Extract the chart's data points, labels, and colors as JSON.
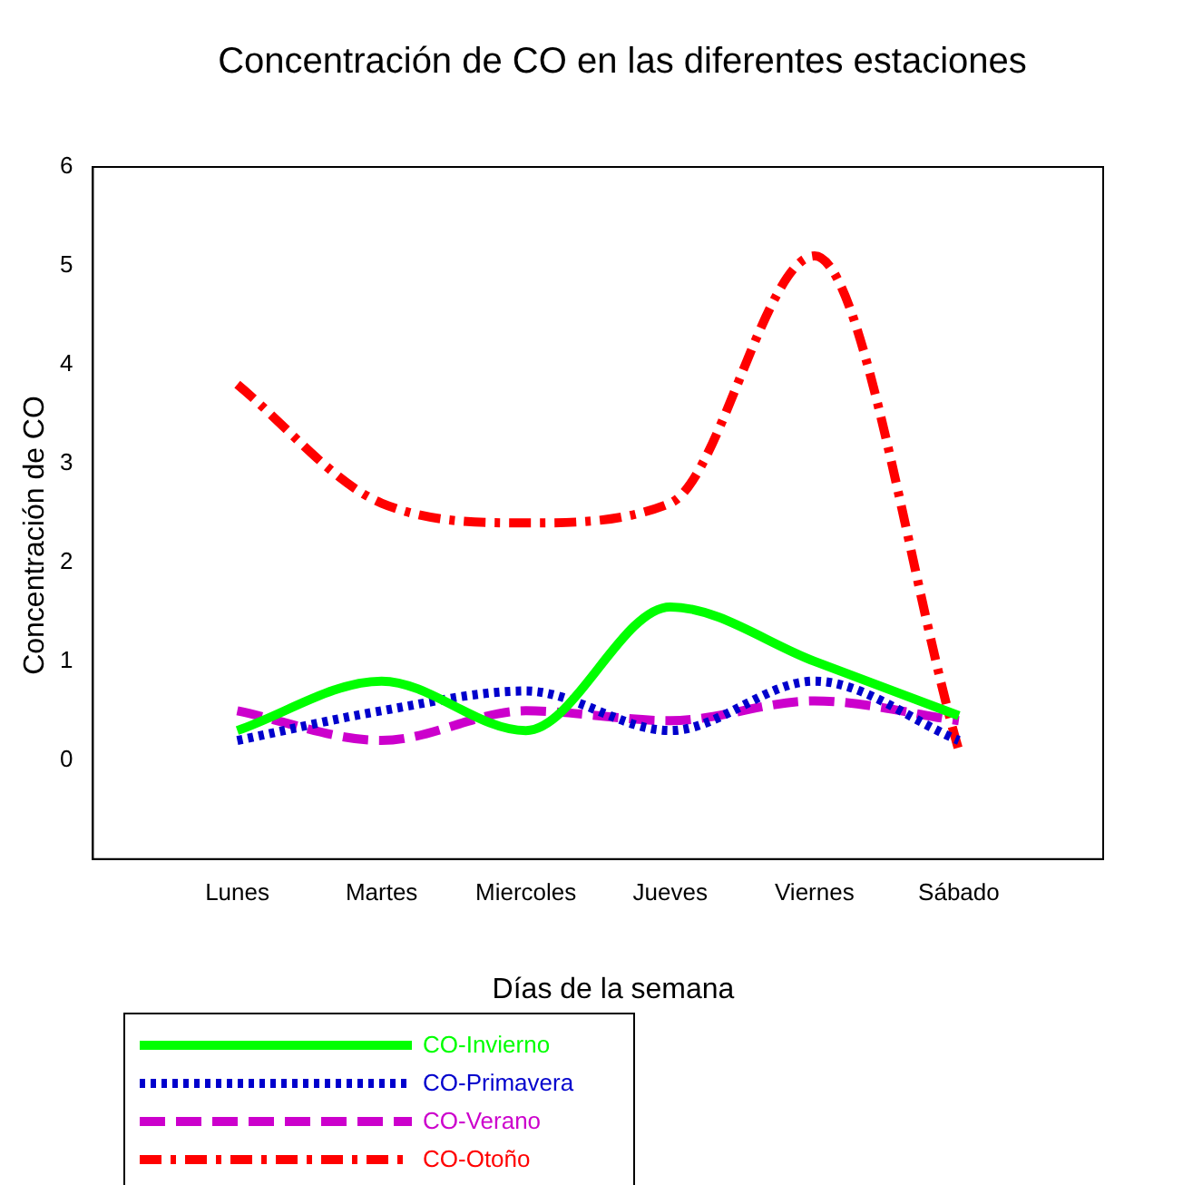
{
  "chart_data": {
    "type": "line",
    "title": "Concentración de CO en las diferentes estaciones",
    "xlabel": "Días de la semana",
    "ylabel": "Concentración de CO",
    "categories": [
      "Lunes",
      "Martes",
      "Miercoles",
      "Jueves",
      "Viernes",
      "Sábado"
    ],
    "series": [
      {
        "name": "CO-Invierno",
        "color": "#00ff00",
        "line_style": "solid",
        "values": [
          0.3,
          0.8,
          0.3,
          1.55,
          1.0,
          0.45
        ]
      },
      {
        "name": "CO-Primavera",
        "color": "#0000cc",
        "line_style": "dotted",
        "values": [
          0.2,
          0.5,
          0.7,
          0.3,
          0.8,
          0.2
        ]
      },
      {
        "name": "CO-Verano",
        "color": "#cc00cc",
        "line_style": "dashed",
        "values": [
          0.5,
          0.2,
          0.5,
          0.4,
          0.6,
          0.4
        ]
      },
      {
        "name": "CO-Otoño",
        "color": "#ff0000",
        "line_style": "dashdot",
        "values": [
          3.8,
          2.6,
          2.4,
          2.6,
          5.1,
          0.1
        ]
      }
    ],
    "ylim": [
      -1,
      6
    ],
    "yticks": [
      0,
      1,
      2,
      3,
      4,
      5,
      6
    ],
    "grid": false,
    "legend": "bottom left",
    "marker": "none"
  }
}
